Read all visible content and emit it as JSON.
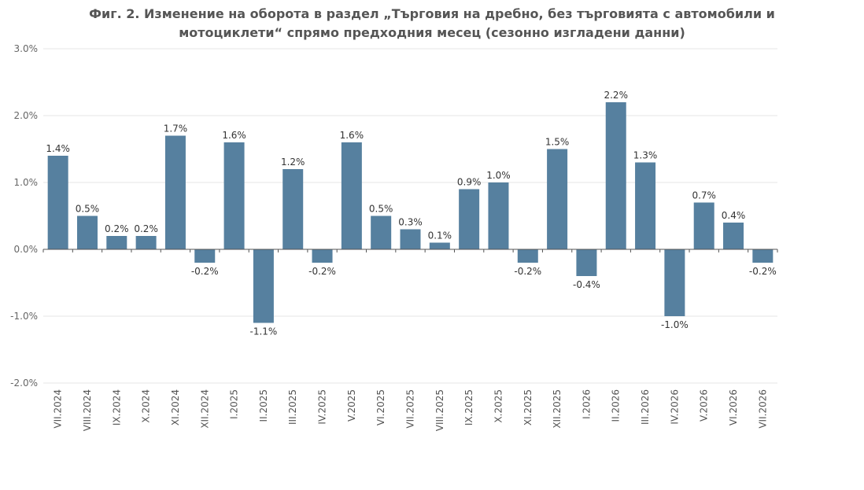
{
  "chart_data": {
    "type": "bar",
    "title_lines": [
      "Фиг. 2. Изменение на оборота в раздел „Търговия на дребно, без търговията с автомобили и",
      "мотоциклети“ спрямо предходния месец (сезонно изгладени данни)"
    ],
    "categories": [
      "VII.2024",
      "VIII.2024",
      "IX.2024",
      "X.2024",
      "XI.2024",
      "XII.2024",
      "I.2025",
      "II.2025",
      "III.2025",
      "IV.2025",
      "V.2025",
      "VI.2025",
      "VII.2025",
      "VIII.2025",
      "IX.2025",
      "X.2025",
      "XI.2025",
      "XII.2025",
      "I.2026",
      "II.2026",
      "III.2026",
      "IV.2026",
      "V.2026",
      "VI.2026",
      "VII.2026"
    ],
    "values": [
      1.4,
      0.5,
      0.2,
      0.2,
      1.7,
      -0.2,
      1.6,
      -1.1,
      1.2,
      -0.2,
      1.6,
      0.5,
      0.3,
      0.1,
      0.9,
      1.0,
      -0.2,
      1.5,
      -0.4,
      2.2,
      1.3,
      -1.0,
      0.7,
      0.4,
      -0.2
    ],
    "data_labels": [
      "1.4%",
      "0.5%",
      "0.2%",
      "0.2%",
      "1.7%",
      "-0.2%",
      "1.6%",
      "-1.1%",
      "1.2%",
      "-0.2%",
      "1.6%",
      "0.5%",
      "0.3%",
      "0.1%",
      "0.9%",
      "1.0%",
      "-0.2%",
      "1.5%",
      "-0.4%",
      "2.2%",
      "1.3%",
      "-1.0%",
      "0.7%",
      "0.4%",
      "-0.2%"
    ],
    "ylim": [
      -2.0,
      3.0
    ],
    "yticks": [
      3.0,
      2.0,
      1.0,
      0.0,
      -1.0,
      -2.0
    ],
    "ytick_labels": [
      "3.0%",
      "2.0%",
      "1.0%",
      "0.0%",
      "-1.0%",
      "-2.0%"
    ],
    "xlabel": "",
    "ylabel": "",
    "grid": true,
    "legend": false,
    "bar_color": "#56809f"
  }
}
